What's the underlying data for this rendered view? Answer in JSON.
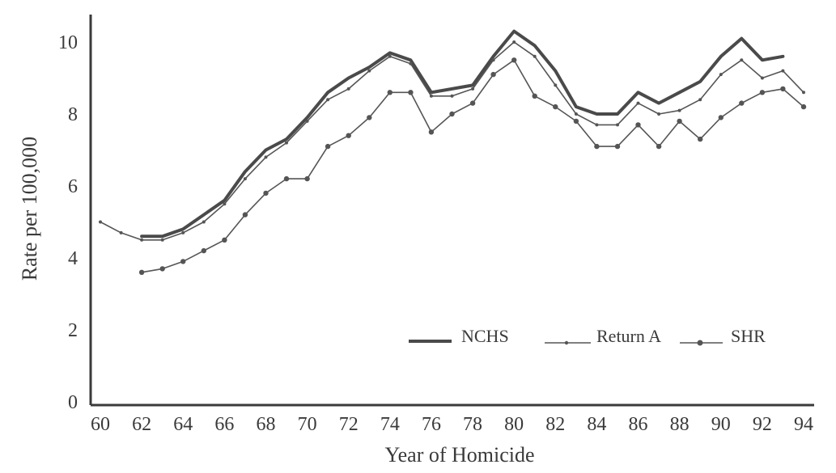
{
  "chart_data": {
    "type": "line",
    "xlabel": "Year of Homicide",
    "ylabel": "Rate per 100,000",
    "xlim": [
      60,
      94
    ],
    "ylim": [
      0,
      10.5
    ],
    "x_ticks": [
      60,
      62,
      64,
      66,
      68,
      70,
      72,
      74,
      76,
      78,
      80,
      82,
      84,
      86,
      88,
      90,
      92,
      94
    ],
    "y_ticks": [
      0,
      2,
      4,
      6,
      8,
      10
    ],
    "grid": false,
    "legend_position": "lower-right",
    "series": [
      {
        "name": "NCHS",
        "style": "thick",
        "color": "#4a4a4a",
        "x": [
          62,
          63,
          64,
          65,
          66,
          67,
          68,
          69,
          70,
          71,
          72,
          73,
          74,
          75,
          76,
          77,
          78,
          79,
          80,
          81,
          82,
          83,
          84,
          85,
          86,
          87,
          88,
          89,
          90,
          91,
          92,
          93
        ],
        "values": [
          4.6,
          4.6,
          4.8,
          5.2,
          5.6,
          6.4,
          7.0,
          7.3,
          7.9,
          8.6,
          9.0,
          9.3,
          9.7,
          9.5,
          8.6,
          8.7,
          8.8,
          9.6,
          10.3,
          9.9,
          9.2,
          8.2,
          8.0,
          8.0,
          8.6,
          8.3,
          8.6,
          8.9,
          9.6,
          10.1,
          9.5,
          9.6
        ]
      },
      {
        "name": "Return A",
        "style": "thin-dots",
        "color": "#555555",
        "x": [
          60,
          61,
          62,
          63,
          64,
          65,
          66,
          67,
          68,
          69,
          70,
          71,
          72,
          73,
          74,
          75,
          76,
          77,
          78,
          79,
          80,
          81,
          82,
          83,
          84,
          85,
          86,
          87,
          88,
          89,
          90,
          91,
          92,
          93,
          94
        ],
        "values": [
          5.0,
          4.7,
          4.5,
          4.5,
          4.7,
          5.0,
          5.5,
          6.2,
          6.8,
          7.2,
          7.8,
          8.4,
          8.7,
          9.2,
          9.6,
          9.4,
          8.5,
          8.5,
          8.7,
          9.5,
          10.0,
          9.6,
          8.8,
          8.0,
          7.7,
          7.7,
          8.3,
          8.0,
          8.1,
          8.4,
          9.1,
          9.5,
          9.0,
          9.2,
          8.6
        ]
      },
      {
        "name": "SHR",
        "style": "thin-markers",
        "color": "#555555",
        "x": [
          62,
          63,
          64,
          65,
          66,
          67,
          68,
          69,
          70,
          71,
          72,
          73,
          74,
          75,
          76,
          77,
          78,
          79,
          80,
          81,
          82,
          83,
          84,
          85,
          86,
          87,
          88,
          89,
          90,
          91,
          92,
          93,
          94
        ],
        "values": [
          3.6,
          3.7,
          3.9,
          4.2,
          4.5,
          5.2,
          5.8,
          6.2,
          6.2,
          7.1,
          7.4,
          7.9,
          8.6,
          8.6,
          7.5,
          8.0,
          8.3,
          9.1,
          9.5,
          8.5,
          8.2,
          7.8,
          7.1,
          7.1,
          7.7,
          7.1,
          7.8,
          7.3,
          7.9,
          8.3,
          8.6,
          8.7,
          8.2
        ]
      }
    ]
  }
}
